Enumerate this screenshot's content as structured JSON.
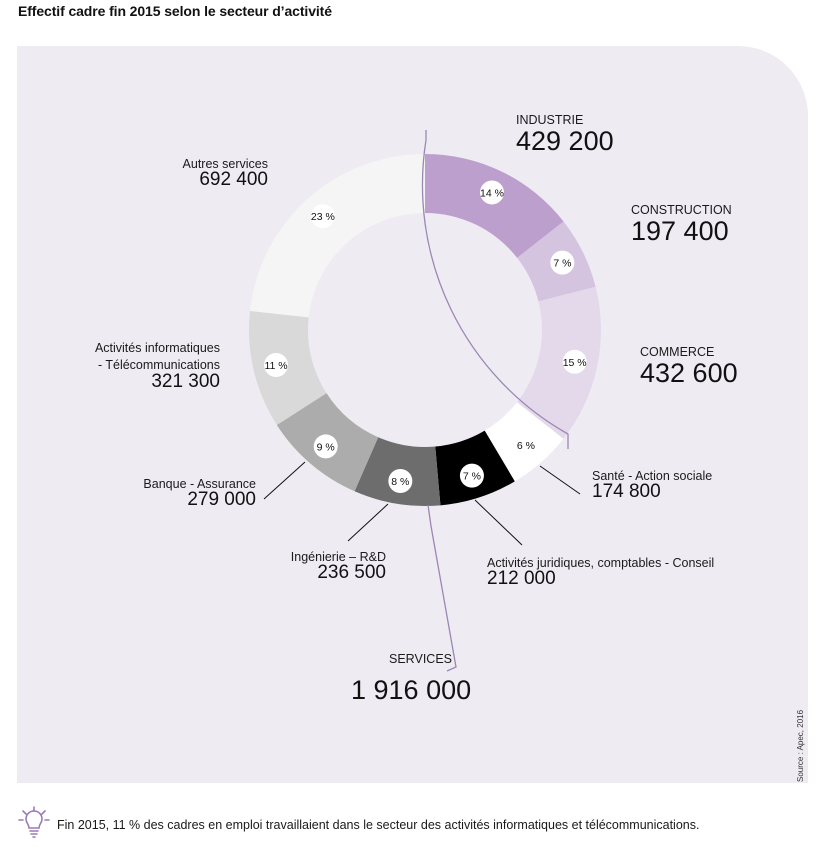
{
  "title": "Effectif cadre fin 2015 selon le secteur d’activité",
  "chart_data": {
    "type": "pie",
    "variant": "donut",
    "title": "Effectif cadre fin 2015 selon le secteur d’activité",
    "slices": [
      {
        "label": "INDUSTRIE",
        "value": 429200,
        "value_text": "429 200",
        "pct": 14,
        "pct_text": "14 %",
        "color": "#bd9fce"
      },
      {
        "label": "CONSTRUCTION",
        "value": 197400,
        "value_text": "197 400",
        "pct": 7,
        "pct_text": "7 %",
        "color": "#d5c4e0"
      },
      {
        "label": "COMMERCE",
        "value": 432600,
        "value_text": "432 600",
        "pct": 15,
        "pct_text": "15 %",
        "color": "#e3d9eb"
      },
      {
        "label": "Santé - Action sociale",
        "value": 174800,
        "value_text": "174 800",
        "pct": 6,
        "pct_text": "6 %",
        "color": "#ffffff"
      },
      {
        "label": "Activités juridiques, comptables - Conseil",
        "value": 212000,
        "value_text": "212 000",
        "pct": 7,
        "pct_text": "7 %",
        "color": "#000000"
      },
      {
        "label": "Ingénierie – R&D",
        "value": 236500,
        "value_text": "236 500",
        "pct": 8,
        "pct_text": "8 %",
        "color": "#6d6d6d"
      },
      {
        "label": "Banque - Assurance",
        "value": 279000,
        "value_text": "279 000",
        "pct": 9,
        "pct_text": "9 %",
        "color": "#acacac"
      },
      {
        "label_line1": "Activités informatiques",
        "label_line2": "- Télécommunications",
        "label": "Activités informatiques - Télécommunications",
        "value": 321300,
        "value_text": "321 300",
        "pct": 11,
        "pct_text": "11 %",
        "color": "#d9d9d9"
      },
      {
        "label": "Autres services",
        "value": 692400,
        "value_text": "692 400",
        "pct": 23,
        "pct_text": "23 %",
        "color": "#f5f5f5"
      }
    ],
    "group": {
      "label": "SERVICES",
      "value": 1916000,
      "value_text": "1 916 000"
    }
  },
  "colors": {
    "panel": "#efebf3",
    "bracket": "#9c86b5",
    "accent": "#9a7bb5"
  },
  "source": "Source : Apec, 2016",
  "footnote": {
    "icon": "lightbulb-icon",
    "text": "Fin 2015, 11 % des cadres en emploi travaillaient dans le secteur des activités informatiques et télécommunications."
  }
}
